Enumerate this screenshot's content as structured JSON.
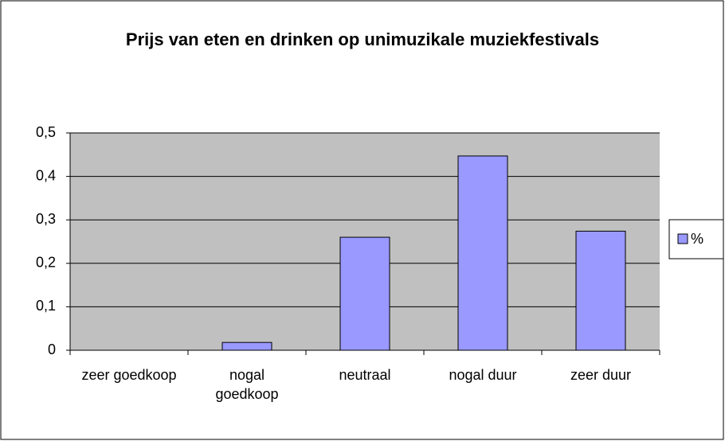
{
  "chart_data": {
    "type": "bar",
    "title": "Prijs van eten en drinken op unimuzikale muziekfestivals",
    "categories": [
      "zeer goedkoop",
      "nogal goedkoop",
      "neutraal",
      "nogal duur",
      "zeer duur"
    ],
    "series": [
      {
        "name": "%",
        "color": "#9999ff",
        "values": [
          0,
          0.018,
          0.26,
          0.447,
          0.274
        ]
      }
    ],
    "ylim": [
      0,
      0.5
    ],
    "yticks": [
      0,
      {
        "value": 0.1,
        "label": "0,1"
      },
      {
        "value": 0.2,
        "label": "0,2"
      },
      {
        "value": 0.3,
        "label": "0,3"
      },
      {
        "value": 0.4,
        "label": "0,4"
      },
      {
        "value": 0.5,
        "label": "0,5"
      }
    ],
    "grid": true,
    "legend": "right"
  }
}
